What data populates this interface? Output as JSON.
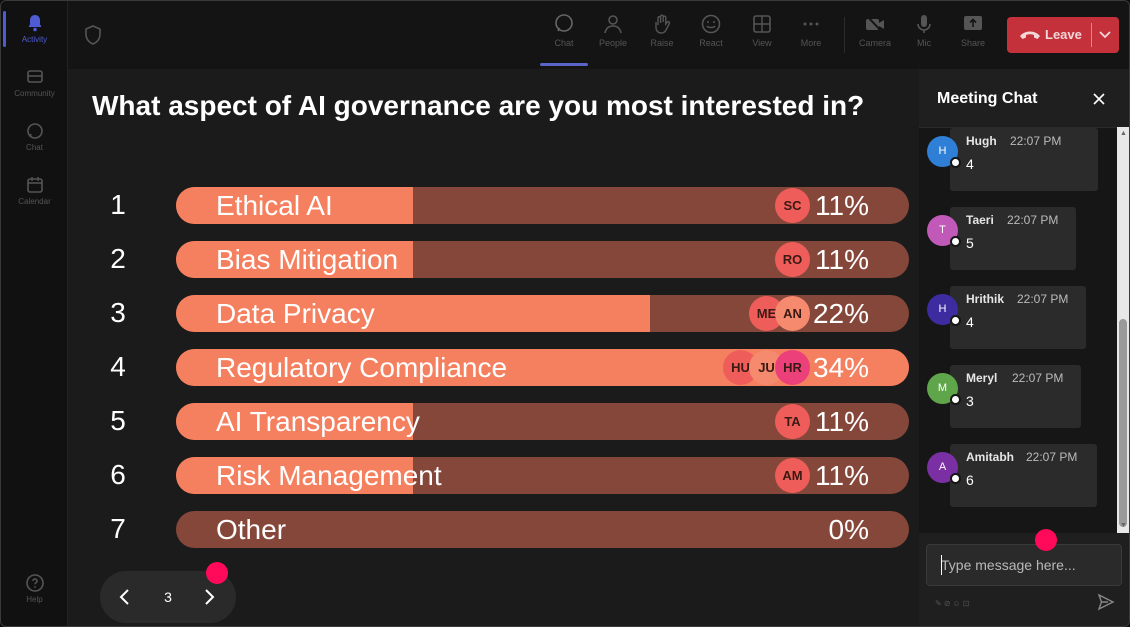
{
  "rail": {
    "items": [
      {
        "label": "Activity",
        "icon": "bell-icon"
      },
      {
        "label": "Community",
        "icon": "community-icon"
      },
      {
        "label": "Chat",
        "icon": "chat-icon"
      },
      {
        "label": "Calendar",
        "icon": "calendar-icon"
      },
      {
        "label": "Help",
        "icon": "help-icon"
      }
    ]
  },
  "toolbar": {
    "chat": "Chat",
    "people": "People",
    "raise": "Raise",
    "react": "React",
    "view": "View",
    "more": "More",
    "camera": "Camera",
    "mic": "Mic",
    "share": "Share",
    "leave": "Leave"
  },
  "poll": {
    "question": "What aspect of AI governance are you most interested in?",
    "options": [
      {
        "num": "1",
        "label": "Ethical AI",
        "pct": "11%",
        "value": 11,
        "avatars": [
          "SC"
        ]
      },
      {
        "num": "2",
        "label": "Bias Mitigation",
        "pct": "11%",
        "value": 11,
        "avatars": [
          "RO"
        ]
      },
      {
        "num": "3",
        "label": "Data Privacy",
        "pct": "22%",
        "value": 22,
        "avatars": [
          "ME",
          "AN"
        ]
      },
      {
        "num": "4",
        "label": "Regulatory Compliance",
        "pct": "34%",
        "value": 34,
        "avatars": [
          "HU",
          "JU",
          "HR"
        ]
      },
      {
        "num": "5",
        "label": "AI Transparency",
        "pct": "11%",
        "value": 11,
        "avatars": [
          "TA"
        ]
      },
      {
        "num": "6",
        "label": "Risk Management",
        "pct": "11%",
        "value": 11,
        "avatars": [
          "AM"
        ]
      },
      {
        "num": "7",
        "label": "Other",
        "pct": "0%",
        "value": 0,
        "avatars": []
      }
    ],
    "page": "3"
  },
  "chat": {
    "title": "Meeting Chat",
    "messages": [
      {
        "initial": "H",
        "name": "Hugh",
        "time": "22:07 PM",
        "text": "4",
        "color": "#2f7fd6"
      },
      {
        "initial": "T",
        "name": "Taeri",
        "time": "22:07 PM",
        "text": "5",
        "color": "#c159b8"
      },
      {
        "initial": "H",
        "name": "Hrithik",
        "time": "22:07 PM",
        "text": "4",
        "color": "#3d2ca0"
      },
      {
        "initial": "M",
        "name": "Meryl",
        "time": "22:07 PM",
        "text": "3",
        "color": "#5fa54a"
      },
      {
        "initial": "A",
        "name": "Amitabh",
        "time": "22:07 PM",
        "text": "6",
        "color": "#7a2fa3"
      }
    ],
    "placeholder": "Type message here..."
  },
  "colors": {
    "bar_fill": "#f5805f",
    "bar_track": "#85473a",
    "leave": "#c4313b",
    "dot": "#ff0a5a"
  }
}
